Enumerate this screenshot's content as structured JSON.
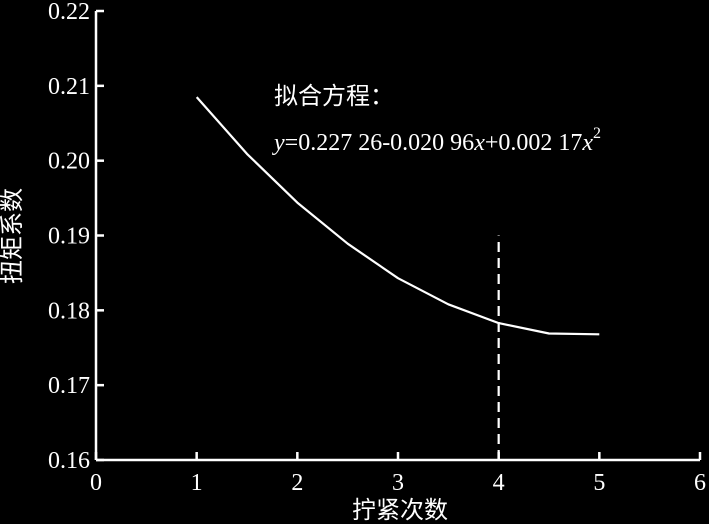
{
  "chart_data": {
    "type": "line",
    "xlabel": "拧紧次数",
    "ylabel": "扭矩系数",
    "xlim": [
      0,
      6
    ],
    "ylim": [
      0.16,
      0.22
    ],
    "x_ticks": [
      "0",
      "1",
      "2",
      "3",
      "4",
      "5",
      "6"
    ],
    "y_ticks": [
      "0.16",
      "0.17",
      "0.18",
      "0.19",
      "0.20",
      "0.21",
      "0.22"
    ],
    "grid": false,
    "annotation_title": "拟合方程：",
    "equation": {
      "y_var": "y",
      "part1": "=0.227 26-0.020 96",
      "x_var1": "x",
      "part2": "+0.002 17",
      "x_var2": "x",
      "exponent": "2"
    },
    "series": [
      {
        "x": [
          1,
          1.5,
          2,
          2.5,
          3,
          3.5,
          4,
          4.5,
          5
        ],
        "y": [
          0.2085,
          0.2009,
          0.1944,
          0.1889,
          0.1843,
          0.1808,
          0.1783,
          0.1769,
          0.1768
        ]
      }
    ],
    "reference_line": {
      "orientation": "vertical",
      "x": 4,
      "y_range": [
        0.16,
        0.19
      ],
      "style": "dashed"
    }
  }
}
